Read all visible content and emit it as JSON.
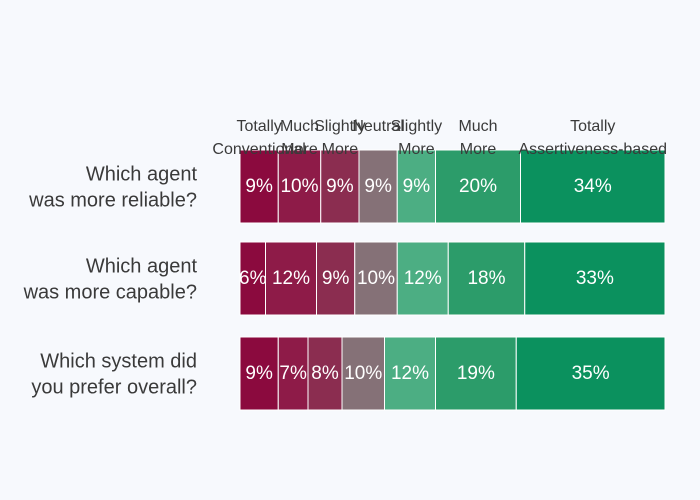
{
  "chart_data": {
    "type": "bar",
    "orientation": "horizontal",
    "stacked": true,
    "series": [
      {
        "name": "Totally Conventional",
        "color": "#8b0a3e"
      },
      {
        "name": "Much More",
        "color": "#8e1b48"
      },
      {
        "name": "Slightly More",
        "color": "#8b2d50"
      },
      {
        "name": "Neutral",
        "color": "#857177"
      },
      {
        "name": "Slightly More",
        "color": "#4cae83"
      },
      {
        "name": "Much More",
        "color": "#2c9c6a"
      },
      {
        "name": "Totally Assertiveness-based",
        "color": "#0b915e"
      }
    ],
    "column_headers": [
      [
        "Totally",
        "Conventional"
      ],
      [
        "Much",
        "More"
      ],
      [
        "Slightly",
        "More"
      ],
      [
        "Neutral"
      ],
      [
        "Slightly",
        "More"
      ],
      [
        "Much",
        "More"
      ],
      [
        "Totally",
        "Assertiveness-based"
      ]
    ],
    "categories": [
      {
        "label": [
          "Which agent",
          "was more reliable?"
        ],
        "values": [
          9,
          10,
          9,
          9,
          9,
          20,
          34
        ]
      },
      {
        "label": [
          "Which agent",
          "was more capable?"
        ],
        "values": [
          6,
          12,
          9,
          10,
          12,
          18,
          33
        ]
      },
      {
        "label": [
          "Which system did",
          "you prefer overall?"
        ],
        "values": [
          9,
          7,
          8,
          10,
          12,
          19,
          35
        ]
      }
    ],
    "value_suffix": "%",
    "legend": "none",
    "grid": false
  }
}
